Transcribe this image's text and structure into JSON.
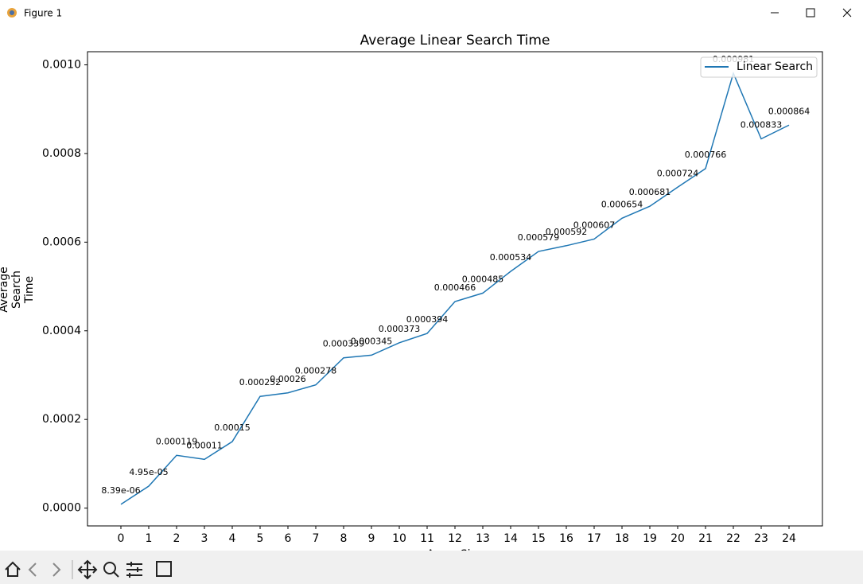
{
  "window_title": "Figure 1",
  "chart_data": {
    "type": "line",
    "title": "Average Linear Search Time",
    "x_label": "Array Size",
    "y_label": "Average\nSearch\nTime",
    "x": [
      0,
      1,
      2,
      3,
      4,
      5,
      6,
      7,
      8,
      9,
      10,
      11,
      12,
      13,
      14,
      15,
      16,
      17,
      18,
      19,
      20,
      21,
      22,
      23,
      24
    ],
    "series": [
      {
        "name": "Linear Search",
        "color": "#1f77b4",
        "values": [
          8.39e-06,
          4.95e-05,
          0.000119,
          0.00011,
          0.00015,
          0.000252,
          0.00026,
          0.000278,
          0.000339,
          0.000345,
          0.000373,
          0.000394,
          0.000466,
          0.000485,
          0.000534,
          0.000579,
          0.000592,
          0.000607,
          0.000654,
          0.000681,
          0.000724,
          0.000766,
          0.000981,
          0.000833,
          0.000864
        ],
        "value_labels": [
          "8.39e-06",
          "4.95e-05",
          "0.000119",
          "0.00011",
          "0.00015",
          "0.000252",
          "0.00026",
          "0.000278",
          "0.000339",
          "0.000345",
          "0.000373",
          "0.000394",
          "0.000466",
          "0.000485",
          "0.000534",
          "0.000579",
          "0.000592",
          "0.000607",
          "0.000654",
          "0.000681",
          "0.000724",
          "0.000766",
          "0.000981",
          "0.000833",
          "0.000864"
        ]
      }
    ],
    "xlim": [
      -1.2,
      25.2
    ],
    "xticks": [
      0,
      1,
      2,
      3,
      4,
      5,
      6,
      7,
      8,
      9,
      10,
      11,
      12,
      13,
      14,
      15,
      16,
      17,
      18,
      19,
      20,
      21,
      22,
      23,
      24
    ],
    "ylim": [
      -4.02e-05,
      0.0010296
    ],
    "yticks": [
      {
        "value": 0,
        "label": "0.0000"
      },
      {
        "value": 0.0002,
        "label": "0.0002"
      },
      {
        "value": 0.0004,
        "label": "0.0004"
      },
      {
        "value": 0.0006,
        "label": "0.0006"
      },
      {
        "value": 0.0008,
        "label": "0.0008"
      },
      {
        "value": 0.001,
        "label": "0.0010"
      }
    ],
    "legend": "upper right",
    "grid": false
  }
}
